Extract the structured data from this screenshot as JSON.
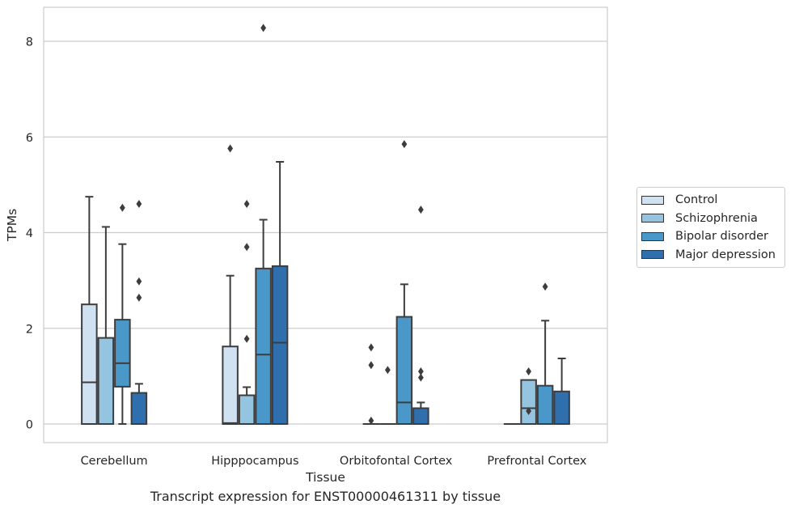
{
  "chart_data": {
    "type": "box",
    "title": "",
    "caption": "Transcript expression for ENST00000461311 by tissue",
    "xlabel": "Tissue",
    "ylabel": "TPMs",
    "ylim": [
      -0.4,
      8.7
    ],
    "yticks": [
      0,
      2,
      4,
      6,
      8
    ],
    "grid": "horizontal",
    "legend_position": "outside-right",
    "categories": [
      "Cerebellum",
      "Hipppocampus",
      "Orbitofontal Cortex",
      "Prefrontal Cortex"
    ],
    "series": [
      {
        "name": "Control",
        "color": "#d0e1f2",
        "boxes": [
          {
            "whisker_low": 0,
            "q1": 0,
            "median": 0.87,
            "q3": 2.5,
            "whisker_high": 4.75,
            "outliers": []
          },
          {
            "whisker_low": 0,
            "q1": 0,
            "median": 0.02,
            "q3": 1.62,
            "whisker_high": 3.1,
            "outliers": [
              5.76
            ]
          },
          {
            "whisker_low": 0,
            "q1": 0,
            "median": 0,
            "q3": 0,
            "whisker_high": 0,
            "outliers": [
              1.6,
              1.23,
              0.07
            ]
          },
          {
            "whisker_low": 0,
            "q1": 0,
            "median": 0,
            "q3": 0,
            "whisker_high": 0,
            "outliers": []
          }
        ]
      },
      {
        "name": "Schizophrenia",
        "color": "#94c4df",
        "boxes": [
          {
            "whisker_low": 0,
            "q1": 0,
            "median": 0,
            "q3": 1.8,
            "whisker_high": 4.12,
            "outliers": []
          },
          {
            "whisker_low": 0,
            "q1": 0,
            "median": 0,
            "q3": 0.6,
            "whisker_high": 0.77,
            "outliers": [
              4.6,
              3.7,
              1.78
            ]
          },
          {
            "whisker_low": 0,
            "q1": 0,
            "median": 0,
            "q3": 0,
            "whisker_high": 0,
            "outliers": [
              1.13
            ]
          },
          {
            "whisker_low": 0,
            "q1": 0,
            "median": 0.33,
            "q3": 0.92,
            "whisker_high": 0.92,
            "outliers": [
              1.1,
              0.27
            ]
          }
        ]
      },
      {
        "name": "Bipolar disorder",
        "color": "#4a98c9",
        "boxes": [
          {
            "whisker_low": 0,
            "q1": 0.78,
            "median": 1.27,
            "q3": 2.18,
            "whisker_high": 3.76,
            "outliers": [
              4.52
            ]
          },
          {
            "whisker_low": 0,
            "q1": 0,
            "median": 1.45,
            "q3": 3.25,
            "whisker_high": 4.27,
            "outliers": [
              8.28
            ]
          },
          {
            "whisker_low": 0,
            "q1": 0,
            "median": 0.45,
            "q3": 2.24,
            "whisker_high": 2.92,
            "outliers": [
              5.85
            ]
          },
          {
            "whisker_low": 0,
            "q1": 0,
            "median": 0,
            "q3": 0.8,
            "whisker_high": 2.16,
            "outliers": [
              2.87
            ]
          }
        ]
      },
      {
        "name": "Major depression",
        "color": "#2f6fae",
        "boxes": [
          {
            "whisker_low": 0,
            "q1": 0,
            "median": 0,
            "q3": 0.65,
            "whisker_high": 0.84,
            "outliers": [
              4.6,
              2.98,
              2.64
            ]
          },
          {
            "whisker_low": 0,
            "q1": 0,
            "median": 1.7,
            "q3": 3.3,
            "whisker_high": 5.48,
            "outliers": []
          },
          {
            "whisker_low": 0,
            "q1": 0,
            "median": 0,
            "q3": 0.33,
            "whisker_high": 0.45,
            "outliers": [
              4.48,
              1.1,
              0.97
            ]
          },
          {
            "whisker_low": 0,
            "q1": 0,
            "median": 0,
            "q3": 0.68,
            "whisker_high": 1.37,
            "outliers": []
          }
        ]
      }
    ]
  }
}
